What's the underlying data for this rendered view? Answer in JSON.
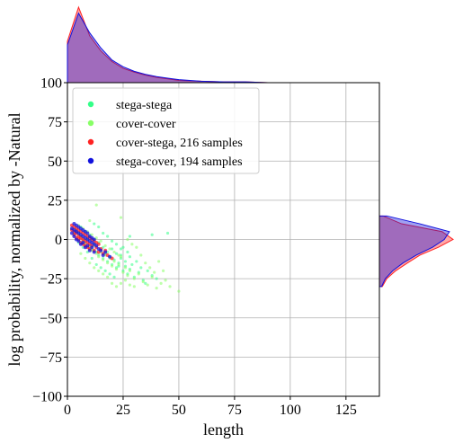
{
  "chart_data": {
    "type": "scatter",
    "title": "",
    "xlabel": "length",
    "ylabel": "log probability, normalized by -Natural",
    "xlim": [
      0,
      140
    ],
    "ylim": [
      -100,
      100
    ],
    "x_ticks": [
      0,
      25,
      50,
      75,
      100,
      125
    ],
    "y_ticks": [
      -100,
      -75,
      -50,
      -25,
      0,
      25,
      50,
      75,
      100
    ],
    "x_tick_labels": [
      "0",
      "25",
      "50",
      "75",
      "100",
      "125"
    ],
    "y_tick_labels": [
      "−100",
      "−75",
      "−50",
      "−25",
      "0",
      "25",
      "50",
      "75",
      "100"
    ],
    "grid": true,
    "legend_position": "top-left",
    "series": [
      {
        "name": "stega-stega",
        "color": "#33ff88",
        "points": [
          [
            4,
            6
          ],
          [
            5,
            4
          ],
          [
            6,
            2
          ],
          [
            7,
            0
          ],
          [
            8,
            -2
          ],
          [
            9,
            1
          ],
          [
            10,
            -4
          ],
          [
            11,
            -6
          ],
          [
            12,
            -3
          ],
          [
            13,
            -8
          ],
          [
            14,
            -10
          ],
          [
            15,
            -7
          ],
          [
            16,
            -12
          ],
          [
            17,
            -9
          ],
          [
            18,
            -14
          ],
          [
            19,
            -11
          ],
          [
            20,
            -16
          ],
          [
            21,
            -13
          ],
          [
            22,
            -18
          ],
          [
            23,
            -15
          ],
          [
            24,
            -10
          ],
          [
            25,
            -20
          ],
          [
            26,
            -17
          ],
          [
            27,
            -22
          ],
          [
            28,
            -19
          ],
          [
            30,
            -24
          ],
          [
            32,
            -21
          ],
          [
            34,
            -26
          ],
          [
            6,
            8
          ],
          [
            8,
            5
          ],
          [
            10,
            3
          ],
          [
            12,
            0
          ],
          [
            14,
            -2
          ],
          [
            16,
            -5
          ],
          [
            18,
            -8
          ],
          [
            20,
            -6
          ],
          [
            22,
            -9
          ],
          [
            24,
            -12
          ],
          [
            26,
            -14
          ],
          [
            28,
            -11
          ],
          [
            13,
            -16
          ],
          [
            15,
            -18
          ],
          [
            17,
            -20
          ],
          [
            19,
            -22
          ],
          [
            21,
            -24
          ],
          [
            23,
            -17
          ],
          [
            9,
            -8
          ],
          [
            11,
            -12
          ],
          [
            7,
            -5
          ],
          [
            5,
            -2
          ],
          [
            3,
            4
          ],
          [
            29,
            -16
          ],
          [
            31,
            -14
          ],
          [
            33,
            -18
          ],
          [
            36,
            -20
          ],
          [
            38,
            -23
          ],
          [
            40,
            -25
          ],
          [
            35,
            -28
          ],
          [
            25,
            -5
          ],
          [
            27,
            -8
          ],
          [
            12,
            10
          ],
          [
            14,
            8
          ],
          [
            16,
            4
          ],
          [
            18,
            2
          ],
          [
            20,
            -1
          ],
          [
            22,
            -3
          ],
          [
            24,
            -6
          ],
          [
            45,
            4
          ],
          [
            38,
            3
          ],
          [
            28,
            2
          ]
        ]
      },
      {
        "name": "cover-cover",
        "color": "#88ff66",
        "points": [
          [
            4,
            5
          ],
          [
            5,
            3
          ],
          [
            6,
            1
          ],
          [
            7,
            -1
          ],
          [
            8,
            -3
          ],
          [
            9,
            0
          ],
          [
            10,
            -5
          ],
          [
            11,
            -7
          ],
          [
            12,
            -4
          ],
          [
            13,
            -9
          ],
          [
            14,
            -11
          ],
          [
            15,
            -8
          ],
          [
            16,
            -13
          ],
          [
            17,
            -10
          ],
          [
            18,
            -15
          ],
          [
            19,
            -12
          ],
          [
            20,
            -17
          ],
          [
            21,
            -14
          ],
          [
            22,
            -19
          ],
          [
            23,
            -16
          ],
          [
            24,
            -11
          ],
          [
            25,
            -21
          ],
          [
            26,
            -18
          ],
          [
            27,
            -23
          ],
          [
            28,
            -20
          ],
          [
            30,
            -25
          ],
          [
            32,
            -22
          ],
          [
            34,
            -27
          ],
          [
            36,
            -29
          ],
          [
            38,
            -24
          ],
          [
            40,
            -31
          ],
          [
            42,
            -28
          ],
          [
            44,
            -26
          ],
          [
            46,
            -30
          ],
          [
            50,
            -33
          ],
          [
            22,
            -30
          ],
          [
            24,
            -28
          ],
          [
            26,
            -26
          ],
          [
            28,
            -29
          ],
          [
            18,
            -24
          ],
          [
            16,
            -22
          ],
          [
            14,
            -20
          ],
          [
            12,
            -18
          ],
          [
            10,
            -15
          ],
          [
            8,
            -12
          ],
          [
            6,
            -9
          ],
          [
            11,
            3
          ],
          [
            13,
            1
          ],
          [
            15,
            -1
          ],
          [
            17,
            -4
          ],
          [
            19,
            -6
          ],
          [
            21,
            -8
          ],
          [
            23,
            -10
          ],
          [
            9,
            5
          ],
          [
            7,
            7
          ],
          [
            5,
            9
          ],
          [
            20,
            -28
          ],
          [
            30,
            -30
          ],
          [
            33,
            -10
          ],
          [
            35,
            -15
          ],
          [
            37,
            -18
          ],
          [
            39,
            -21
          ],
          [
            41,
            -14
          ],
          [
            43,
            -20
          ],
          [
            31,
            -5
          ],
          [
            29,
            -3
          ],
          [
            27,
            0
          ],
          [
            13,
            22
          ],
          [
            24,
            14
          ],
          [
            10,
            12
          ]
        ]
      },
      {
        "name": "cover-stega, 216 samples",
        "color": "#ff2222",
        "points": [
          [
            2,
            6
          ],
          [
            3,
            5
          ],
          [
            3,
            3
          ],
          [
            4,
            4
          ],
          [
            4,
            1
          ],
          [
            5,
            2
          ],
          [
            5,
            0
          ],
          [
            6,
            1
          ],
          [
            6,
            -2
          ],
          [
            7,
            0
          ],
          [
            7,
            -3
          ],
          [
            8,
            -1
          ],
          [
            8,
            -4
          ],
          [
            9,
            -2
          ],
          [
            9,
            -5
          ],
          [
            10,
            -3
          ],
          [
            10,
            -6
          ],
          [
            11,
            -4
          ],
          [
            12,
            -7
          ],
          [
            13,
            -5
          ],
          [
            14,
            -8
          ],
          [
            15,
            -6
          ],
          [
            16,
            -9
          ],
          [
            17,
            -7
          ],
          [
            18,
            -10
          ],
          [
            20,
            -12
          ],
          [
            2,
            9
          ],
          [
            3,
            8
          ],
          [
            4,
            7
          ],
          [
            5,
            6
          ],
          [
            6,
            5
          ],
          [
            7,
            4
          ],
          [
            8,
            3
          ],
          [
            9,
            2
          ],
          [
            10,
            1
          ],
          [
            11,
            0
          ],
          [
            12,
            -1
          ],
          [
            13,
            -2
          ],
          [
            14,
            -3
          ]
        ]
      },
      {
        "name": "stega-cover, 194 samples",
        "color": "#1111dd",
        "points": [
          [
            2,
            7
          ],
          [
            2,
            4
          ],
          [
            3,
            6
          ],
          [
            3,
            2
          ],
          [
            4,
            5
          ],
          [
            4,
            0
          ],
          [
            5,
            4
          ],
          [
            5,
            -1
          ],
          [
            6,
            3
          ],
          [
            6,
            -3
          ],
          [
            7,
            2
          ],
          [
            7,
            -2
          ],
          [
            8,
            1
          ],
          [
            8,
            -5
          ],
          [
            9,
            0
          ],
          [
            9,
            -4
          ],
          [
            10,
            -1
          ],
          [
            10,
            -7
          ],
          [
            11,
            -2
          ],
          [
            11,
            -5
          ],
          [
            12,
            -3
          ],
          [
            12,
            -8
          ],
          [
            13,
            -4
          ],
          [
            14,
            -6
          ],
          [
            15,
            -7
          ],
          [
            16,
            -10
          ],
          [
            17,
            -8
          ],
          [
            19,
            -11
          ],
          [
            3,
            10
          ],
          [
            4,
            9
          ],
          [
            5,
            8
          ],
          [
            6,
            7
          ],
          [
            7,
            6
          ],
          [
            8,
            5
          ],
          [
            9,
            4
          ],
          [
            10,
            2
          ],
          [
            11,
            1
          ],
          [
            12,
            0
          ]
        ]
      }
    ],
    "marginal_x": {
      "bin_centers": [
        0,
        5,
        10,
        15,
        20,
        25,
        30,
        35,
        40,
        45,
        50,
        60,
        70,
        80,
        90,
        100,
        110,
        120,
        130,
        140
      ],
      "density": {
        "cover-stega, 216 samples": [
          0.55,
          1.0,
          0.62,
          0.42,
          0.28,
          0.19,
          0.14,
          0.1,
          0.07,
          0.05,
          0.03,
          0.02,
          0.01,
          0.01,
          0,
          0,
          0,
          0,
          0,
          0
        ],
        "stega-cover, 194 samples": [
          0.5,
          0.92,
          0.66,
          0.46,
          0.3,
          0.21,
          0.15,
          0.11,
          0.08,
          0.06,
          0.04,
          0.02,
          0.01,
          0.01,
          0,
          0,
          0,
          0,
          0,
          0
        ]
      }
    },
    "marginal_y": {
      "bin_centers": [
        -30,
        -25,
        -20,
        -15,
        -10,
        -5,
        0,
        5,
        10,
        15
      ],
      "density": {
        "cover-stega, 216 samples": [
          0.04,
          0.1,
          0.22,
          0.38,
          0.55,
          0.8,
          1.0,
          0.85,
          0.3,
          0.05
        ],
        "stega-cover, 194 samples": [
          0.03,
          0.08,
          0.18,
          0.32,
          0.5,
          0.72,
          0.88,
          0.95,
          0.55,
          0.1
        ]
      }
    }
  }
}
